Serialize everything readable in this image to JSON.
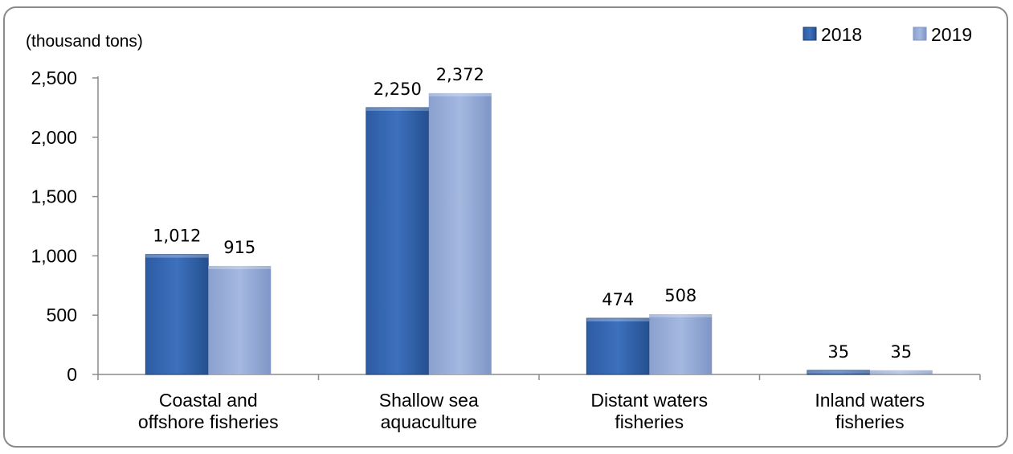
{
  "chart_data": {
    "type": "bar",
    "unit_label": "(thousand tons)",
    "categories": [
      [
        "Coastal and",
        "offshore fisheries"
      ],
      [
        "Shallow sea",
        "aquaculture"
      ],
      [
        "Distant waters",
        "fisheries"
      ],
      [
        "Inland waters",
        "fisheries"
      ]
    ],
    "series": [
      {
        "name": "2018",
        "values": [
          1012,
          2250,
          474,
          35
        ],
        "labels": [
          "1,012",
          "2,250",
          "474",
          "35"
        ],
        "color": "#2f5fa8"
      },
      {
        "name": "2019",
        "values": [
          915,
          2372,
          508,
          35
        ],
        "labels": [
          "915",
          "2,372",
          "508",
          "35"
        ],
        "color": "#93a9d6"
      }
    ],
    "ylim": [
      0,
      2500
    ],
    "yticks": [
      0,
      500,
      1000,
      1500,
      2000,
      2500
    ],
    "ytick_labels": [
      "0",
      "500",
      "1,000",
      "1,500",
      "2,000",
      "2,500"
    ],
    "grid": false,
    "legend_position": "top-right"
  }
}
